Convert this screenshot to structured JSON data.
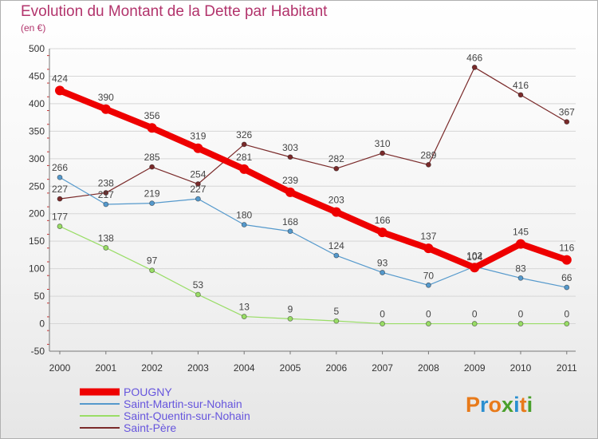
{
  "title": "Evolution du Montant de la Dette par Habitant",
  "subtitle": "(en €)",
  "logo": {
    "text": "Proxiti",
    "colors": [
      "#e87a1a",
      "#2a8fd0",
      "#e87a1a",
      "#4aa02c",
      "#2a8fd0",
      "#e87a1a",
      "#4aa02c"
    ]
  },
  "chart_data": {
    "type": "line",
    "title": "Evolution du Montant de la Dette par Habitant",
    "ylabel": "(en €)",
    "xlabel": "",
    "ylim": [
      -50,
      500
    ],
    "yticks": [
      -50,
      0,
      50,
      100,
      150,
      200,
      250,
      300,
      350,
      400,
      450,
      500
    ],
    "grid": true,
    "legend_position": "bottom-left",
    "x": [
      "2000",
      "2001",
      "2002",
      "2003",
      "2004",
      "2005",
      "2006",
      "2007",
      "2008",
      "2009",
      "2010",
      "2011"
    ],
    "series": [
      {
        "name": "Saint-Père",
        "color": "#7a2a2a",
        "width": 1.2,
        "marker": 3,
        "values": [
          227,
          238,
          285,
          254,
          326,
          303,
          282,
          310,
          289,
          466,
          416,
          367
        ]
      },
      {
        "name": "Saint-Quentin-sur-Nohain",
        "color": "#99dd66",
        "width": 1.2,
        "marker": 3,
        "values": [
          177,
          138,
          97,
          53,
          13,
          9,
          5,
          0,
          0,
          0,
          0,
          0
        ]
      },
      {
        "name": "Saint-Martin-sur-Nohain",
        "color": "#5599cc",
        "width": 1.2,
        "marker": 3,
        "values": [
          266,
          217,
          219,
          227,
          180,
          168,
          124,
          93,
          70,
          104,
          83,
          66
        ]
      },
      {
        "name": "POUGNY",
        "color": "#ee0000",
        "width": 8,
        "marker": 6,
        "values": [
          424,
          390,
          356,
          319,
          281,
          239,
          203,
          166,
          137,
          102,
          145,
          116
        ]
      }
    ]
  }
}
